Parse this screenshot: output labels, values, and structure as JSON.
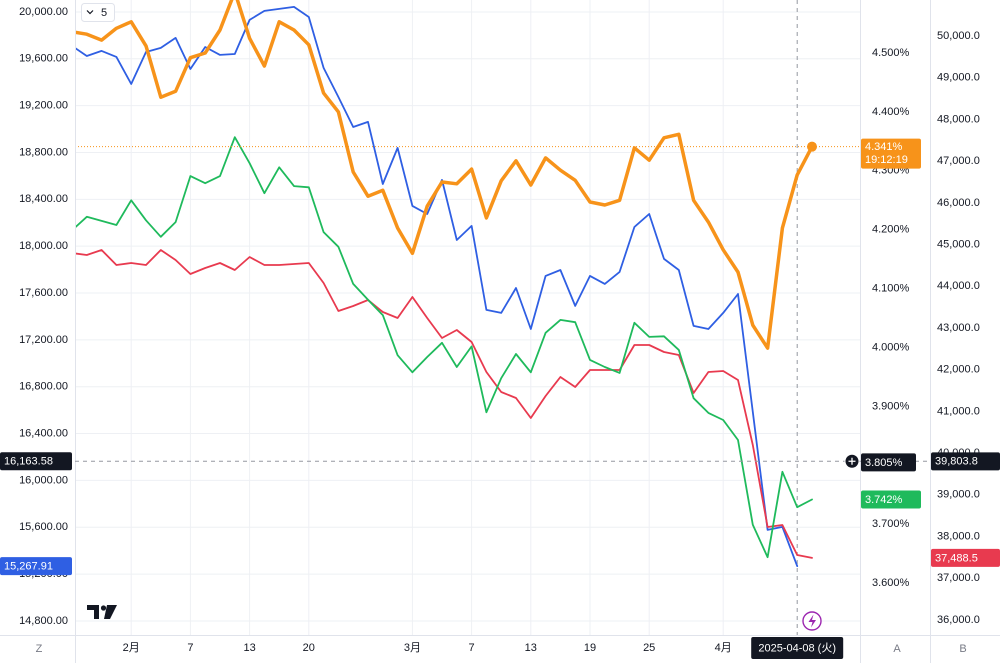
{
  "chart_data": {
    "type": "line",
    "categories": [
      null,
      null,
      null,
      null,
      "2月",
      null,
      null,
      null,
      "7",
      null,
      null,
      null,
      "13",
      null,
      null,
      null,
      "20",
      null,
      null,
      null,
      null,
      null,
      null,
      "3月",
      null,
      null,
      null,
      "7",
      null,
      null,
      null,
      "13",
      null,
      null,
      null,
      "19",
      null,
      null,
      null,
      "25",
      null,
      null,
      null,
      null,
      "4月",
      null,
      null,
      null,
      null,
      null,
      null
    ],
    "ylim": [
      14680,
      20102
    ],
    "yticks": [
      {
        "value": 20000,
        "label": "20,000.00"
      },
      {
        "value": 19600,
        "label": "19,600.00"
      },
      {
        "value": 19200,
        "label": "19,200.00"
      },
      {
        "value": 18800,
        "label": "18,800.00"
      },
      {
        "value": 18400,
        "label": "18,400.00"
      },
      {
        "value": 18000,
        "label": "18,000.00"
      },
      {
        "value": 17600,
        "label": "17,600.00"
      },
      {
        "value": 17200,
        "label": "17,200.00"
      },
      {
        "value": 16800,
        "label": "16,800.00"
      },
      {
        "value": 16400,
        "label": "16,400.00"
      },
      {
        "value": 16000,
        "label": "16,000.00"
      },
      {
        "value": 15600,
        "label": "15,600.00"
      },
      {
        "value": 15200,
        "label": "15,200.00"
      },
      {
        "value": 14800,
        "label": "14,800.00"
      }
    ],
    "y2lim": [
      3.512,
      4.59
    ],
    "y2ticks": [
      {
        "value": 4.5,
        "label": "4.500%"
      },
      {
        "value": 4.4,
        "label": "4.400%"
      },
      {
        "value": 4.3,
        "label": "4.300%"
      },
      {
        "value": 4.2,
        "label": "4.200%"
      },
      {
        "value": 4.1,
        "label": "4.100%"
      },
      {
        "value": 4.0,
        "label": "4.000%"
      },
      {
        "value": 3.9,
        "label": "3.900%"
      },
      {
        "value": 3.8,
        "label": "3.800%"
      },
      {
        "value": 3.7,
        "label": "3.700%"
      },
      {
        "value": 3.6,
        "label": "3.600%"
      }
    ],
    "y3lim": [
      35640,
      50863
    ],
    "y3ticks": [
      {
        "value": 50000,
        "label": "50,000.0"
      },
      {
        "value": 49000,
        "label": "49,000.0"
      },
      {
        "value": 48000,
        "label": "48,000.0"
      },
      {
        "value": 47000,
        "label": "47,000.0"
      },
      {
        "value": 46000,
        "label": "46,000.0"
      },
      {
        "value": 45000,
        "label": "45,000.0"
      },
      {
        "value": 44000,
        "label": "44,000.0"
      },
      {
        "value": 43000,
        "label": "43,000.0"
      },
      {
        "value": 42000,
        "label": "42,000.0"
      },
      {
        "value": 41000,
        "label": "41,000.0"
      },
      {
        "value": 40000,
        "label": "40,000.0"
      },
      {
        "value": 39000,
        "label": "39,000.0"
      },
      {
        "value": 38000,
        "label": "38,000.0"
      },
      {
        "value": 37000,
        "label": "37,000.0"
      },
      {
        "value": 36000,
        "label": "36,000.0"
      }
    ],
    "grid": true,
    "series": [
      {
        "color": "#2f5fe3",
        "axis": "y",
        "values": [
          19710,
          19624,
          19667,
          19616,
          19385,
          19658,
          19693,
          19778,
          19513,
          19701,
          19633,
          19641,
          19932,
          20009,
          20026,
          20043,
          19957,
          19522,
          19274,
          19018,
          19061,
          18531,
          18839,
          18344,
          18275,
          18566,
          18053,
          18173,
          17456,
          17430,
          17643,
          17293,
          17746,
          17797,
          17490,
          17746,
          17678,
          17780,
          18164,
          18275,
          17891,
          17797,
          17319,
          17293,
          17430,
          17592,
          16585,
          15577,
          15603,
          15267.91,
          null
        ],
        "value_labels": [
          null,
          null,
          null,
          null,
          null,
          null,
          null,
          null,
          null,
          null,
          null,
          null,
          null,
          null,
          null,
          null,
          null,
          null,
          null,
          null,
          null,
          null,
          null,
          null,
          null,
          null,
          null,
          null,
          null,
          null,
          null,
          null,
          null,
          null,
          null,
          null,
          null,
          null,
          null,
          null,
          null,
          null,
          null,
          null,
          null,
          null,
          null,
          null,
          null,
          "15,267.91",
          null
        ]
      },
      {
        "color": "#e83a4f",
        "axis": "y3",
        "values": [
          44797,
          44749,
          44869,
          44510,
          44558,
          44510,
          44869,
          44630,
          44294,
          44438,
          44558,
          44390,
          44702,
          44510,
          44510,
          44534,
          44558,
          44078,
          43407,
          43527,
          43671,
          43383,
          43239,
          43743,
          43239,
          42760,
          42951,
          42664,
          41945,
          41465,
          41321,
          40841,
          41369,
          41825,
          41585,
          41992,
          41992,
          41992,
          42592,
          42592,
          42424,
          42352,
          41442,
          41945,
          41968,
          41753,
          40194,
          38229,
          38277,
          37557,
          37488.5
        ],
        "value_labels": [
          null,
          null,
          null,
          null,
          null,
          null,
          null,
          null,
          null,
          null,
          null,
          null,
          null,
          null,
          null,
          null,
          null,
          null,
          null,
          null,
          null,
          null,
          null,
          null,
          null,
          null,
          null,
          null,
          null,
          null,
          null,
          null,
          null,
          null,
          null,
          null,
          null,
          null,
          null,
          null,
          null,
          null,
          null,
          null,
          null,
          null,
          null,
          null,
          null,
          null,
          "37,488.5"
        ]
      },
      {
        "color": "#1fba5c",
        "axis": "y2",
        "values": [
          4.199,
          4.222,
          4.215,
          4.208,
          4.25,
          4.216,
          4.188,
          4.213,
          4.291,
          4.279,
          4.291,
          4.357,
          4.313,
          4.262,
          4.306,
          4.274,
          4.272,
          4.196,
          4.171,
          4.108,
          4.081,
          4.055,
          3.987,
          3.958,
          3.984,
          4.008,
          3.967,
          4.002,
          3.89,
          3.948,
          3.989,
          3.958,
          4.025,
          4.047,
          4.043,
          3.979,
          3.967,
          3.957,
          4.042,
          4.018,
          4.019,
          3.996,
          3.914,
          3.889,
          3.877,
          3.843,
          3.699,
          3.644,
          3.789,
          3.729,
          3.742
        ],
        "value_labels": [
          null,
          null,
          null,
          null,
          null,
          null,
          null,
          null,
          null,
          null,
          null,
          null,
          null,
          null,
          null,
          null,
          null,
          null,
          null,
          null,
          null,
          null,
          null,
          null,
          null,
          null,
          null,
          null,
          null,
          null,
          null,
          null,
          null,
          null,
          null,
          null,
          null,
          null,
          null,
          null,
          null,
          null,
          null,
          null,
          null,
          null,
          null,
          null,
          null,
          null,
          "3.742%"
        ]
      },
      {
        "color": "#f7931a",
        "axis": "y2",
        "price_line": true,
        "countdown": "19:12:19",
        "values": [
          4.536,
          4.532,
          4.522,
          4.542,
          4.553,
          4.512,
          4.425,
          4.435,
          4.492,
          4.5,
          4.539,
          4.604,
          4.525,
          4.478,
          4.553,
          4.539,
          4.514,
          4.432,
          4.4,
          4.298,
          4.257,
          4.267,
          4.203,
          4.16,
          4.24,
          4.281,
          4.278,
          4.303,
          4.22,
          4.283,
          4.317,
          4.276,
          4.322,
          4.301,
          4.284,
          4.247,
          4.242,
          4.25,
          4.339,
          4.318,
          4.356,
          4.362,
          4.25,
          4.213,
          4.166,
          4.128,
          4.038,
          3.999,
          4.203,
          4.293,
          4.341
        ],
        "value_labels": [
          null,
          null,
          null,
          null,
          null,
          null,
          null,
          null,
          null,
          null,
          null,
          null,
          null,
          null,
          null,
          null,
          null,
          null,
          null,
          null,
          null,
          null,
          null,
          null,
          null,
          null,
          null,
          null,
          null,
          null,
          null,
          null,
          null,
          null,
          null,
          null,
          null,
          null,
          null,
          null,
          null,
          null,
          null,
          null,
          null,
          null,
          null,
          null,
          null,
          null,
          "4.341%"
        ]
      }
    ],
    "crosshair": {
      "x_label": "2025-04-08 (火)",
      "y": {
        "value": 16163.58,
        "label": "16,163.58"
      },
      "y2": {
        "value": 3.805,
        "label": "3.805%"
      },
      "y3": {
        "value": 39803.8,
        "label": "39,803.8"
      }
    }
  },
  "ui": {
    "series_count": "5",
    "axis_buttons": [
      "Z",
      "A",
      "B"
    ]
  }
}
